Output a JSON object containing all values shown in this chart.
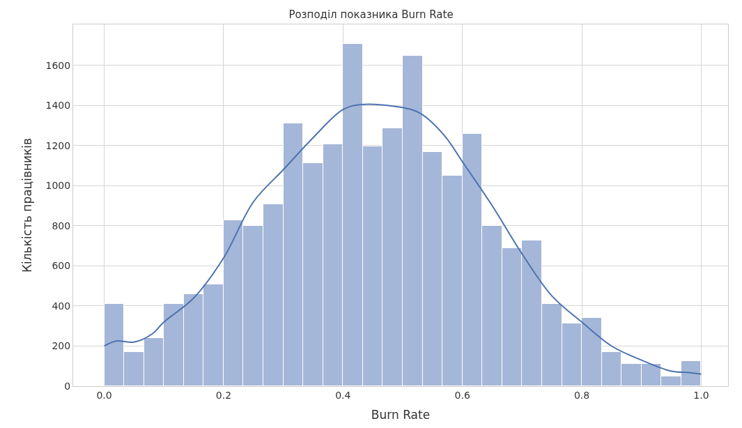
{
  "chart_data": {
    "type": "histogram",
    "title": "Розподіл показника Burn Rate",
    "xlabel": "Burn Rate",
    "ylabel": "Кількість працівників",
    "xlim": [
      -0.052,
      1.045
    ],
    "xticks": [
      {
        "value": 0,
        "label": "0.0"
      },
      {
        "value": 0.2,
        "label": "0.2"
      },
      {
        "value": 0.4,
        "label": "0.4"
      },
      {
        "value": 0.6,
        "label": "0.6"
      },
      {
        "value": 0.8,
        "label": "0.8"
      },
      {
        "value": 1,
        "label": "1.0"
      }
    ],
    "ylim": [
      0,
      1805
    ],
    "yticks": [
      0,
      200,
      400,
      600,
      800,
      1000,
      1200,
      1400,
      1600
    ],
    "grid": true,
    "series": [
      {
        "color": "#a5b7d8",
        "bins": [
          0,
          0.0333,
          0.0667,
          0.1,
          0.1333,
          0.1667,
          0.2,
          0.2333,
          0.2667,
          0.3,
          0.3333,
          0.3667,
          0.4,
          0.4333,
          0.4667,
          0.5,
          0.5333,
          0.5667,
          0.6,
          0.6333,
          0.6667,
          0.7,
          0.7333,
          0.7667,
          0.8,
          0.8333,
          0.8667,
          0.9,
          0.9333,
          0.9667,
          1
        ],
        "values": [
          412,
          170,
          240,
          410,
          460,
          508,
          828,
          800,
          908,
          1310,
          1112,
          1208,
          1706,
          1196,
          1286,
          1648,
          1170,
          1052,
          1258,
          800,
          690,
          728,
          412,
          312,
          342,
          170,
          112,
          112,
          48,
          126
        ]
      },
      {
        "type": "line",
        "color": "#4c72b0",
        "x": [
          0,
          0.02,
          0.05,
          0.08,
          0.1,
          0.15,
          0.2,
          0.25,
          0.3,
          0.35,
          0.4,
          0.43,
          0.5,
          0.53,
          0.57,
          0.6,
          0.65,
          0.7,
          0.75,
          0.8,
          0.85,
          0.9,
          0.95,
          0.98,
          1.0
        ],
        "values": [
          200,
          225,
          220,
          260,
          320,
          440,
          640,
          920,
          1080,
          1240,
          1380,
          1405,
          1390,
          1360,
          1250,
          1120,
          900,
          660,
          450,
          320,
          200,
          130,
          75,
          68,
          60
        ]
      }
    ]
  }
}
